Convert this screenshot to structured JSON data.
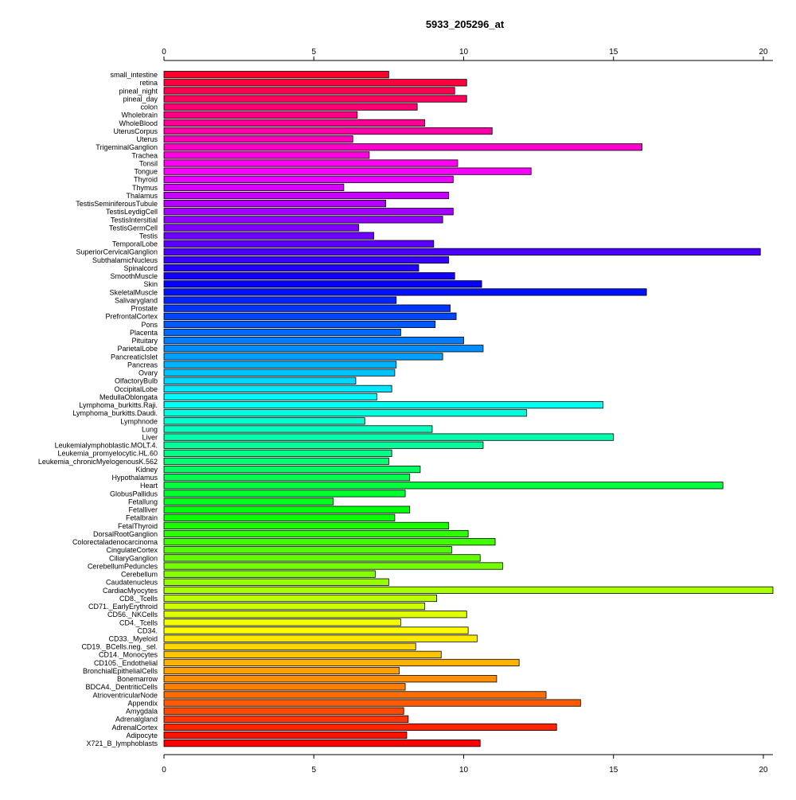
{
  "chart_data": {
    "type": "bar",
    "orientation": "horizontal",
    "title": "5933_205296_at",
    "xlabel": "",
    "ylabel": "",
    "xlim": [
      0,
      20
    ],
    "x_ticks": [
      0,
      5,
      10,
      15,
      20
    ],
    "grid": false,
    "legend": "none",
    "color_scheme": "rainbow",
    "categories": [
      "small_intestine",
      "retina",
      "pineal_night",
      "pineal_day",
      "colon",
      "Wholebrain",
      "WholeBlood",
      "UterusCorpus",
      "Uterus",
      "TrigeminalGanglion",
      "Trachea",
      "Tonsil",
      "Tongue",
      "Thyroid",
      "Thymus",
      "Thalamus",
      "TestisSeminiferousTubule",
      "TestisLeydigCell",
      "TestisIntersitial",
      "TestisGermCell",
      "Testis",
      "TemporalLobe",
      "SuperiorCervicalGanglion",
      "SubthalamicNucleus",
      "Spinalcord",
      "SmoothMuscle",
      "Skin",
      "SkeletalMuscle",
      "Salivarygland",
      "Prostate",
      "PrefrontalCortex",
      "Pons",
      "Placenta",
      "Pituitary",
      "ParietalLobe",
      "PancreaticIslet",
      "Pancreas",
      "Ovary",
      "OlfactoryBulb",
      "OccipitalLobe",
      "MedullaOblongata",
      "Lymphoma_burkitts.Raji.",
      "Lymphoma_burkitts.Daudi.",
      "Lymphnode",
      "Lung",
      "Liver",
      "Leukemialymphoblastic.MOLT.4.",
      "Leukemia_promyelocytic.HL.60",
      "Leukemia_chronicMyelogenousK.562",
      "Kidney",
      "Hypothalamus",
      "Heart",
      "GlobusPallidus",
      "Fetallung",
      "Fetalliver",
      "Fetalbrain",
      "FetalThyroid",
      "DorsalRootGanglion",
      "Colorectaladenocarcinoma",
      "CingulateCortex",
      "CiliaryGanglion",
      "CerebellumPeduncles",
      "Cerebellum",
      "Caudatenucleus",
      "CardiacMyocytes",
      "CD8._Tcells",
      "CD71._EarlyErythroid",
      "CD56._NKCells",
      "CD4._Tcells",
      "CD34.",
      "CD33._Myeloid",
      "CD19._BCells.neg._sel.",
      "CD14._Monocytes",
      "CD105._Endothelial",
      "BronchialEpithelialCells",
      "Bonemarrow",
      "BDCA4._DentriticCells",
      "AtrioventricularNode",
      "Appendix",
      "Amygdala",
      "Adrenalgland",
      "AdrenalCortex",
      "Adipocyte",
      "X721_B_lymphoblasts"
    ],
    "values": [
      7.5,
      10.1,
      9.7,
      10.1,
      8.45,
      6.45,
      8.7,
      10.95,
      6.3,
      15.95,
      6.85,
      9.8,
      12.25,
      9.65,
      6.0,
      9.5,
      7.4,
      9.65,
      9.3,
      6.5,
      7.0,
      9.0,
      19.9,
      9.5,
      8.5,
      9.7,
      10.6,
      16.1,
      7.75,
      9.55,
      9.75,
      9.05,
      7.9,
      10.0,
      10.65,
      9.3,
      7.75,
      7.7,
      6.4,
      7.6,
      7.1,
      14.65,
      12.1,
      6.7,
      8.95,
      15.0,
      10.65,
      7.6,
      7.5,
      8.55,
      8.2,
      18.65,
      8.05,
      5.65,
      8.2,
      7.7,
      9.5,
      10.15,
      11.05,
      9.6,
      10.55,
      11.3,
      7.05,
      7.5,
      20.35,
      9.1,
      8.7,
      10.1,
      7.9,
      10.15,
      10.45,
      8.4,
      9.25,
      11.85,
      7.85,
      11.1,
      8.05,
      12.75,
      13.9,
      8.0,
      8.15,
      13.1,
      8.1,
      10.55
    ]
  }
}
